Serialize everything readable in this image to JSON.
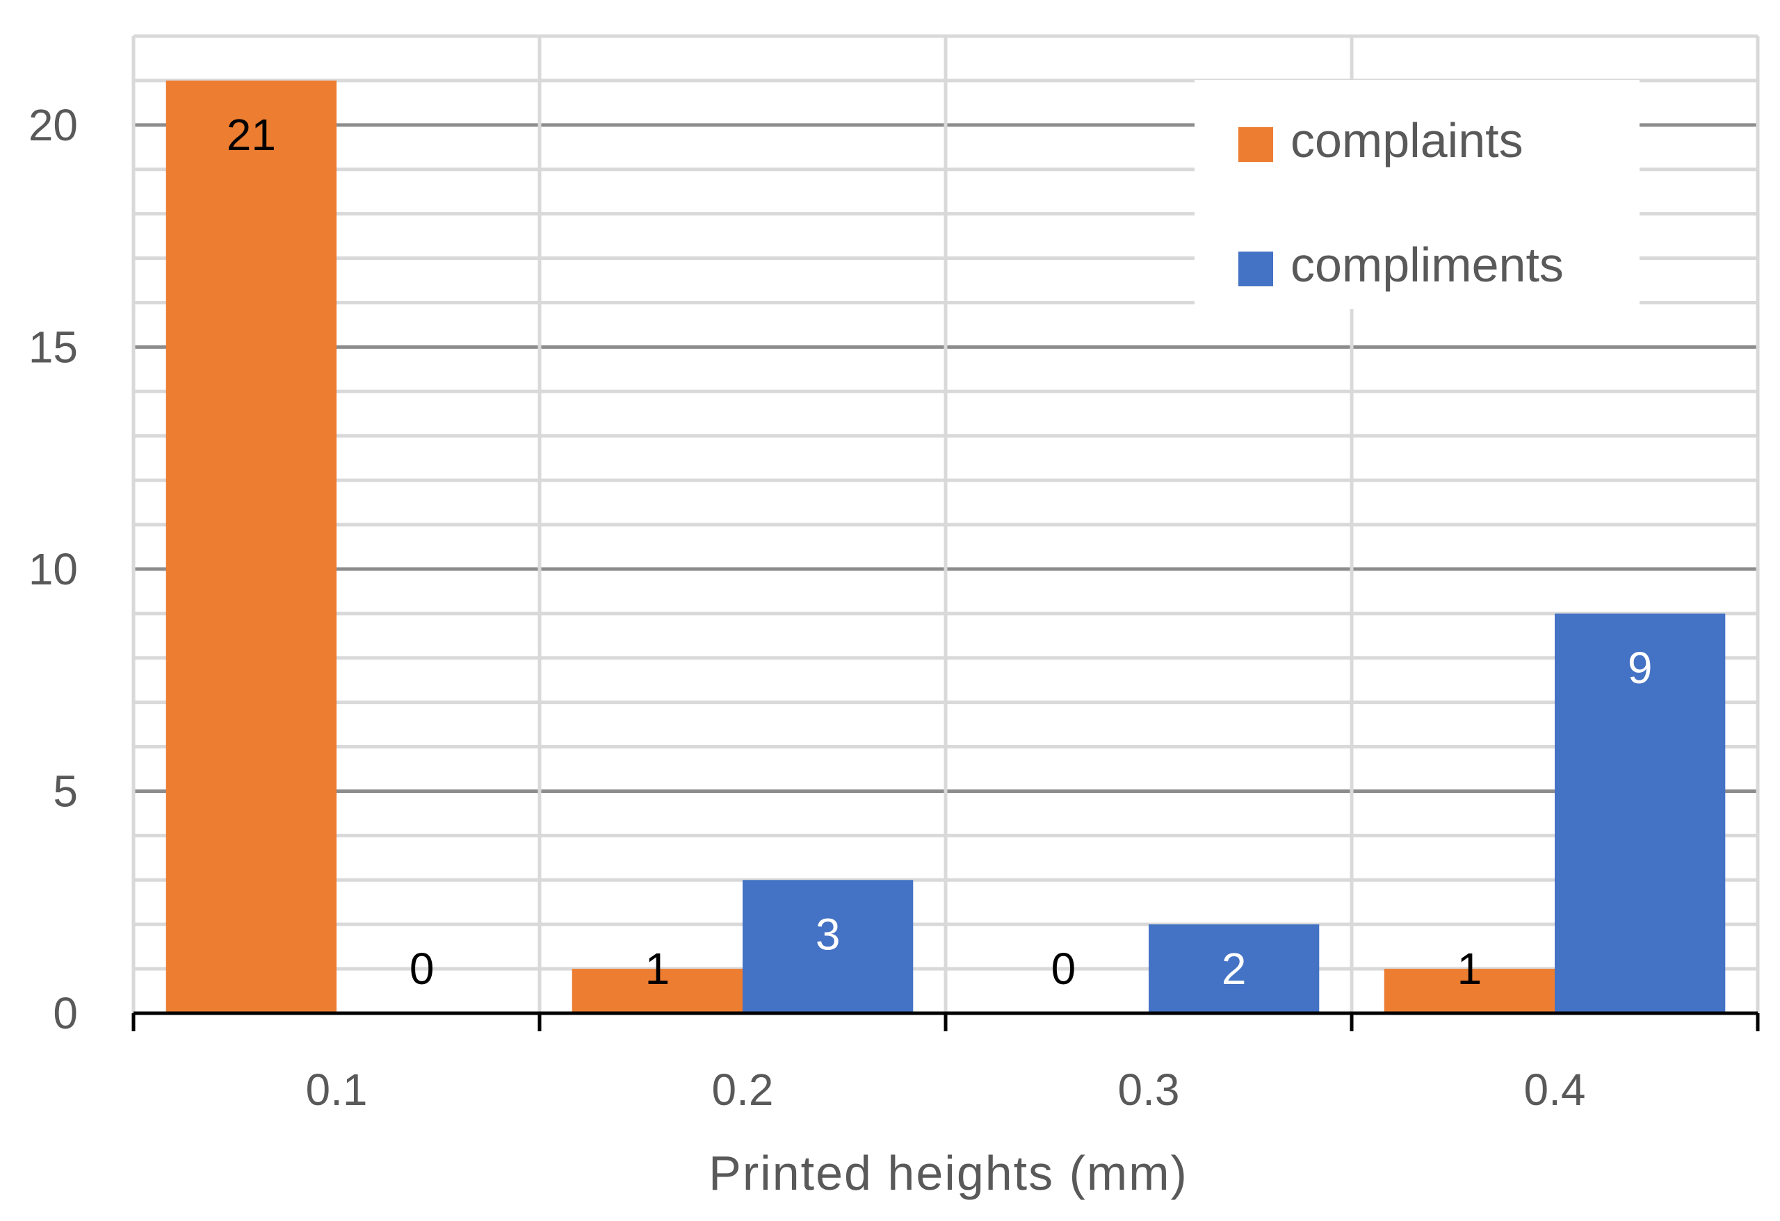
{
  "chart_data": {
    "type": "bar",
    "title": "",
    "xlabel": "Printed heights (mm)",
    "ylabel": "",
    "categories": [
      "0.1",
      "0.2",
      "0.3",
      "0.4"
    ],
    "series": [
      {
        "name": "complaints",
        "values": [
          21,
          1,
          0,
          1
        ],
        "color": "#ED7D31"
      },
      {
        "name": "compliments",
        "values": [
          0,
          3,
          2,
          9
        ],
        "color": "#4472C4"
      }
    ],
    "ylim": [
      0,
      22
    ],
    "yticks": [
      "0",
      "5",
      "10",
      "15",
      "20"
    ],
    "ytick_values": [
      0,
      5,
      10,
      15,
      20
    ],
    "minor_grid_step": 1,
    "grid": true,
    "legend": "top-right",
    "data_label_colors": {
      "complaints": "#000000",
      "compliments": "#ffffff"
    }
  }
}
